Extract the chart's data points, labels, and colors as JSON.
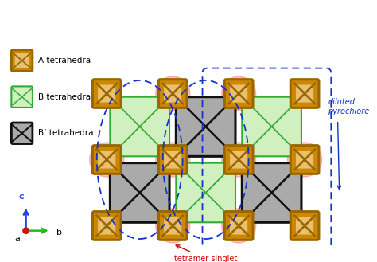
{
  "fig_width": 4.74,
  "fig_height": 3.29,
  "dpi": 100,
  "bg_color": "#ffffff",
  "A_color_fill": "#cc8800",
  "A_color_edge": "#996600",
  "A_color_inner": "#e8c070",
  "B_color_fill": "#d0f0c0",
  "B_color_edge": "#33aa33",
  "Bp_color_fill": "#aaaaaa",
  "Bp_color_edge": "#111111",
  "pink_glow_color": "#ff6666",
  "pink_glow_alpha": 0.4,
  "dashed_color": "#1133cc",
  "arrow_c_color": "#2244ee",
  "arrow_b_color": "#22bb22",
  "arrow_dot_color": "#cc1111",
  "legend_A_label": "A tetrahedra",
  "legend_B_label": "B tetrahedra",
  "legend_Bp_label": "B’ tetrahedra",
  "text_diluted": "diluted\npyrochlore",
  "text_singlet": "tetramer singlet"
}
